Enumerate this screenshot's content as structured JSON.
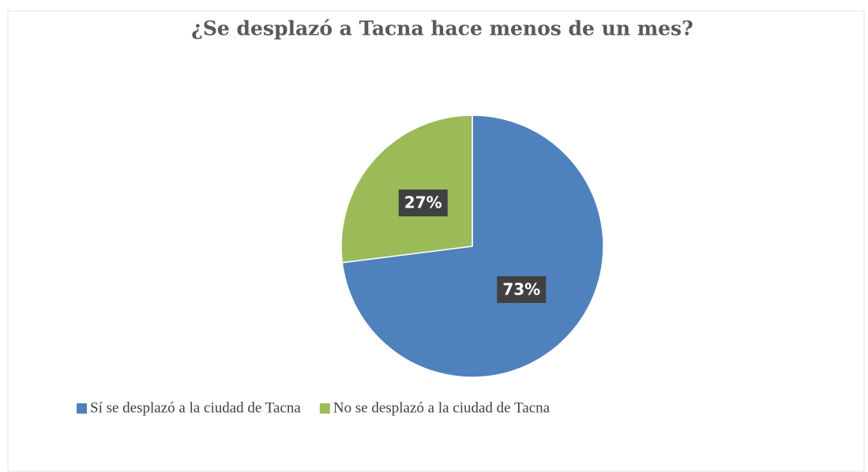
{
  "chart_data": {
    "type": "pie",
    "title": "¿Se desplazó a Tacna hace menos de un mes?",
    "categories": [
      "Sí se desplazó a la ciudad de Tacna",
      "No se desplazó a la ciudad de Tacna"
    ],
    "values": [
      73,
      27
    ],
    "value_labels": [
      "73%",
      "27%"
    ],
    "colors": [
      "#4f81bd",
      "#9bbb59"
    ],
    "legend": "bottom"
  }
}
